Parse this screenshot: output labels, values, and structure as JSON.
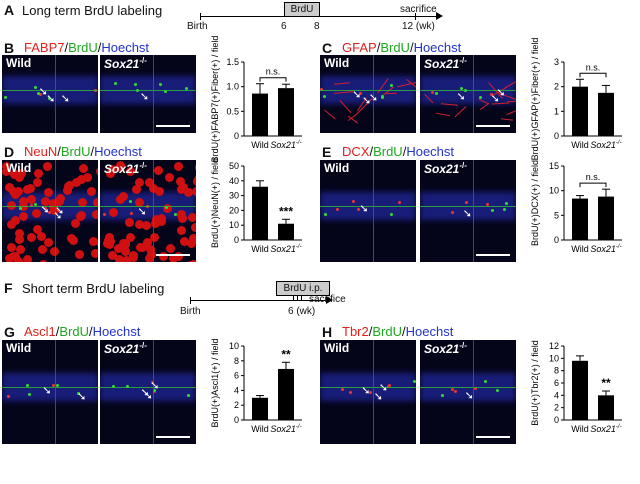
{
  "panels": {
    "A": {
      "letter": "A",
      "title": "Long term BrdU labeling",
      "timeline": {
        "birth": "Birth",
        "box": "BrdU",
        "t6": "6",
        "t8": "8",
        "end": "sacrifice",
        "t12": "12 (wk)"
      }
    },
    "F": {
      "letter": "F",
      "title": "Short term BrdU labeling",
      "timeline": {
        "birth": "Birth",
        "box": "BrdU i.p.",
        "t6": "6 (wk)",
        "end": "sacrifice"
      }
    },
    "B": {
      "letter": "B",
      "stain": [
        "FABP7",
        "BrdU",
        "Hoechst"
      ],
      "wild": "Wild",
      "ko": "Sox21"
    },
    "C": {
      "letter": "C",
      "stain": [
        "GFAP",
        "BrdU",
        "Hoechst"
      ],
      "wild": "Wild",
      "ko": "Sox21"
    },
    "D": {
      "letter": "D",
      "stain": [
        "NeuN",
        "BrdU",
        "Hoechst"
      ],
      "wild": "Wild",
      "ko": "Sox21"
    },
    "E": {
      "letter": "E",
      "stain": [
        "DCX",
        "BrdU",
        "Hoechst"
      ],
      "wild": "Wild",
      "ko": "Sox21"
    },
    "G": {
      "letter": "G",
      "stain": [
        "Ascl1",
        "BrdU",
        "Hoechst"
      ],
      "wild": "Wild",
      "ko": "Sox21"
    },
    "H": {
      "letter": "H",
      "stain": [
        "Tbr2",
        "BrdU",
        "Hoechst"
      ],
      "wild": "Wild",
      "ko": "Sox21"
    }
  },
  "ko_sup": "-/-",
  "chart_data": [
    {
      "panel": "B",
      "type": "bar",
      "categories": [
        "Wild",
        "Sox21-/-"
      ],
      "values": [
        0.86,
        0.97
      ],
      "errors": [
        0.2,
        0.08
      ],
      "ylabel": "BrdU(+)FABP7(+)Fiber(+) / field",
      "ylim": [
        0,
        1.5
      ],
      "yticks": [
        "0",
        "0.5",
        "1.0",
        "1.5"
      ],
      "sig": "n.s."
    },
    {
      "panel": "C",
      "type": "bar",
      "categories": [
        "Wild",
        "Sox21-/-"
      ],
      "values": [
        2.0,
        1.75
      ],
      "errors": [
        0.3,
        0.3
      ],
      "ylabel": "BrdU(+)GFAP(+)Fiber(+) / field",
      "ylim": [
        0,
        3
      ],
      "yticks": [
        "0",
        "1",
        "2",
        "3"
      ],
      "sig": "n.s."
    },
    {
      "panel": "D",
      "type": "bar",
      "categories": [
        "Wild",
        "Sox21-/-"
      ],
      "values": [
        36,
        11
      ],
      "errors": [
        4,
        3
      ],
      "ylabel": "BrdU(+)NeuN(+) / field",
      "ylim": [
        0,
        50
      ],
      "yticks": [
        "0",
        "10",
        "20",
        "30",
        "40",
        "50"
      ],
      "sig": "***"
    },
    {
      "panel": "E",
      "type": "bar",
      "categories": [
        "Wild",
        "Sox21-/-"
      ],
      "values": [
        8.4,
        8.8
      ],
      "errors": [
        0.6,
        1.5
      ],
      "ylabel": "BrdU(+)DCX(+) / field",
      "ylim": [
        0,
        15
      ],
      "yticks": [
        "0",
        "5",
        "10",
        "15"
      ],
      "sig": "n.s."
    },
    {
      "panel": "G",
      "type": "bar",
      "categories": [
        "Wild",
        "Sox21-/-"
      ],
      "values": [
        3.0,
        6.9
      ],
      "errors": [
        0.3,
        0.9
      ],
      "ylabel": "BrdU(+)Ascl1(+) / field",
      "ylim": [
        0,
        10
      ],
      "yticks": [
        "0",
        "2",
        "4",
        "6",
        "8",
        "10"
      ],
      "sig": "**"
    },
    {
      "panel": "H",
      "type": "bar",
      "categories": [
        "Wild",
        "Sox21-/-"
      ],
      "values": [
        9.6,
        4.0
      ],
      "errors": [
        0.8,
        0.7
      ],
      "ylabel": "BrdU(+)Tbr2(+) / field",
      "ylim": [
        0,
        12
      ],
      "yticks": [
        "0",
        "2",
        "4",
        "6",
        "8",
        "10",
        "12"
      ],
      "sig": "**"
    }
  ]
}
